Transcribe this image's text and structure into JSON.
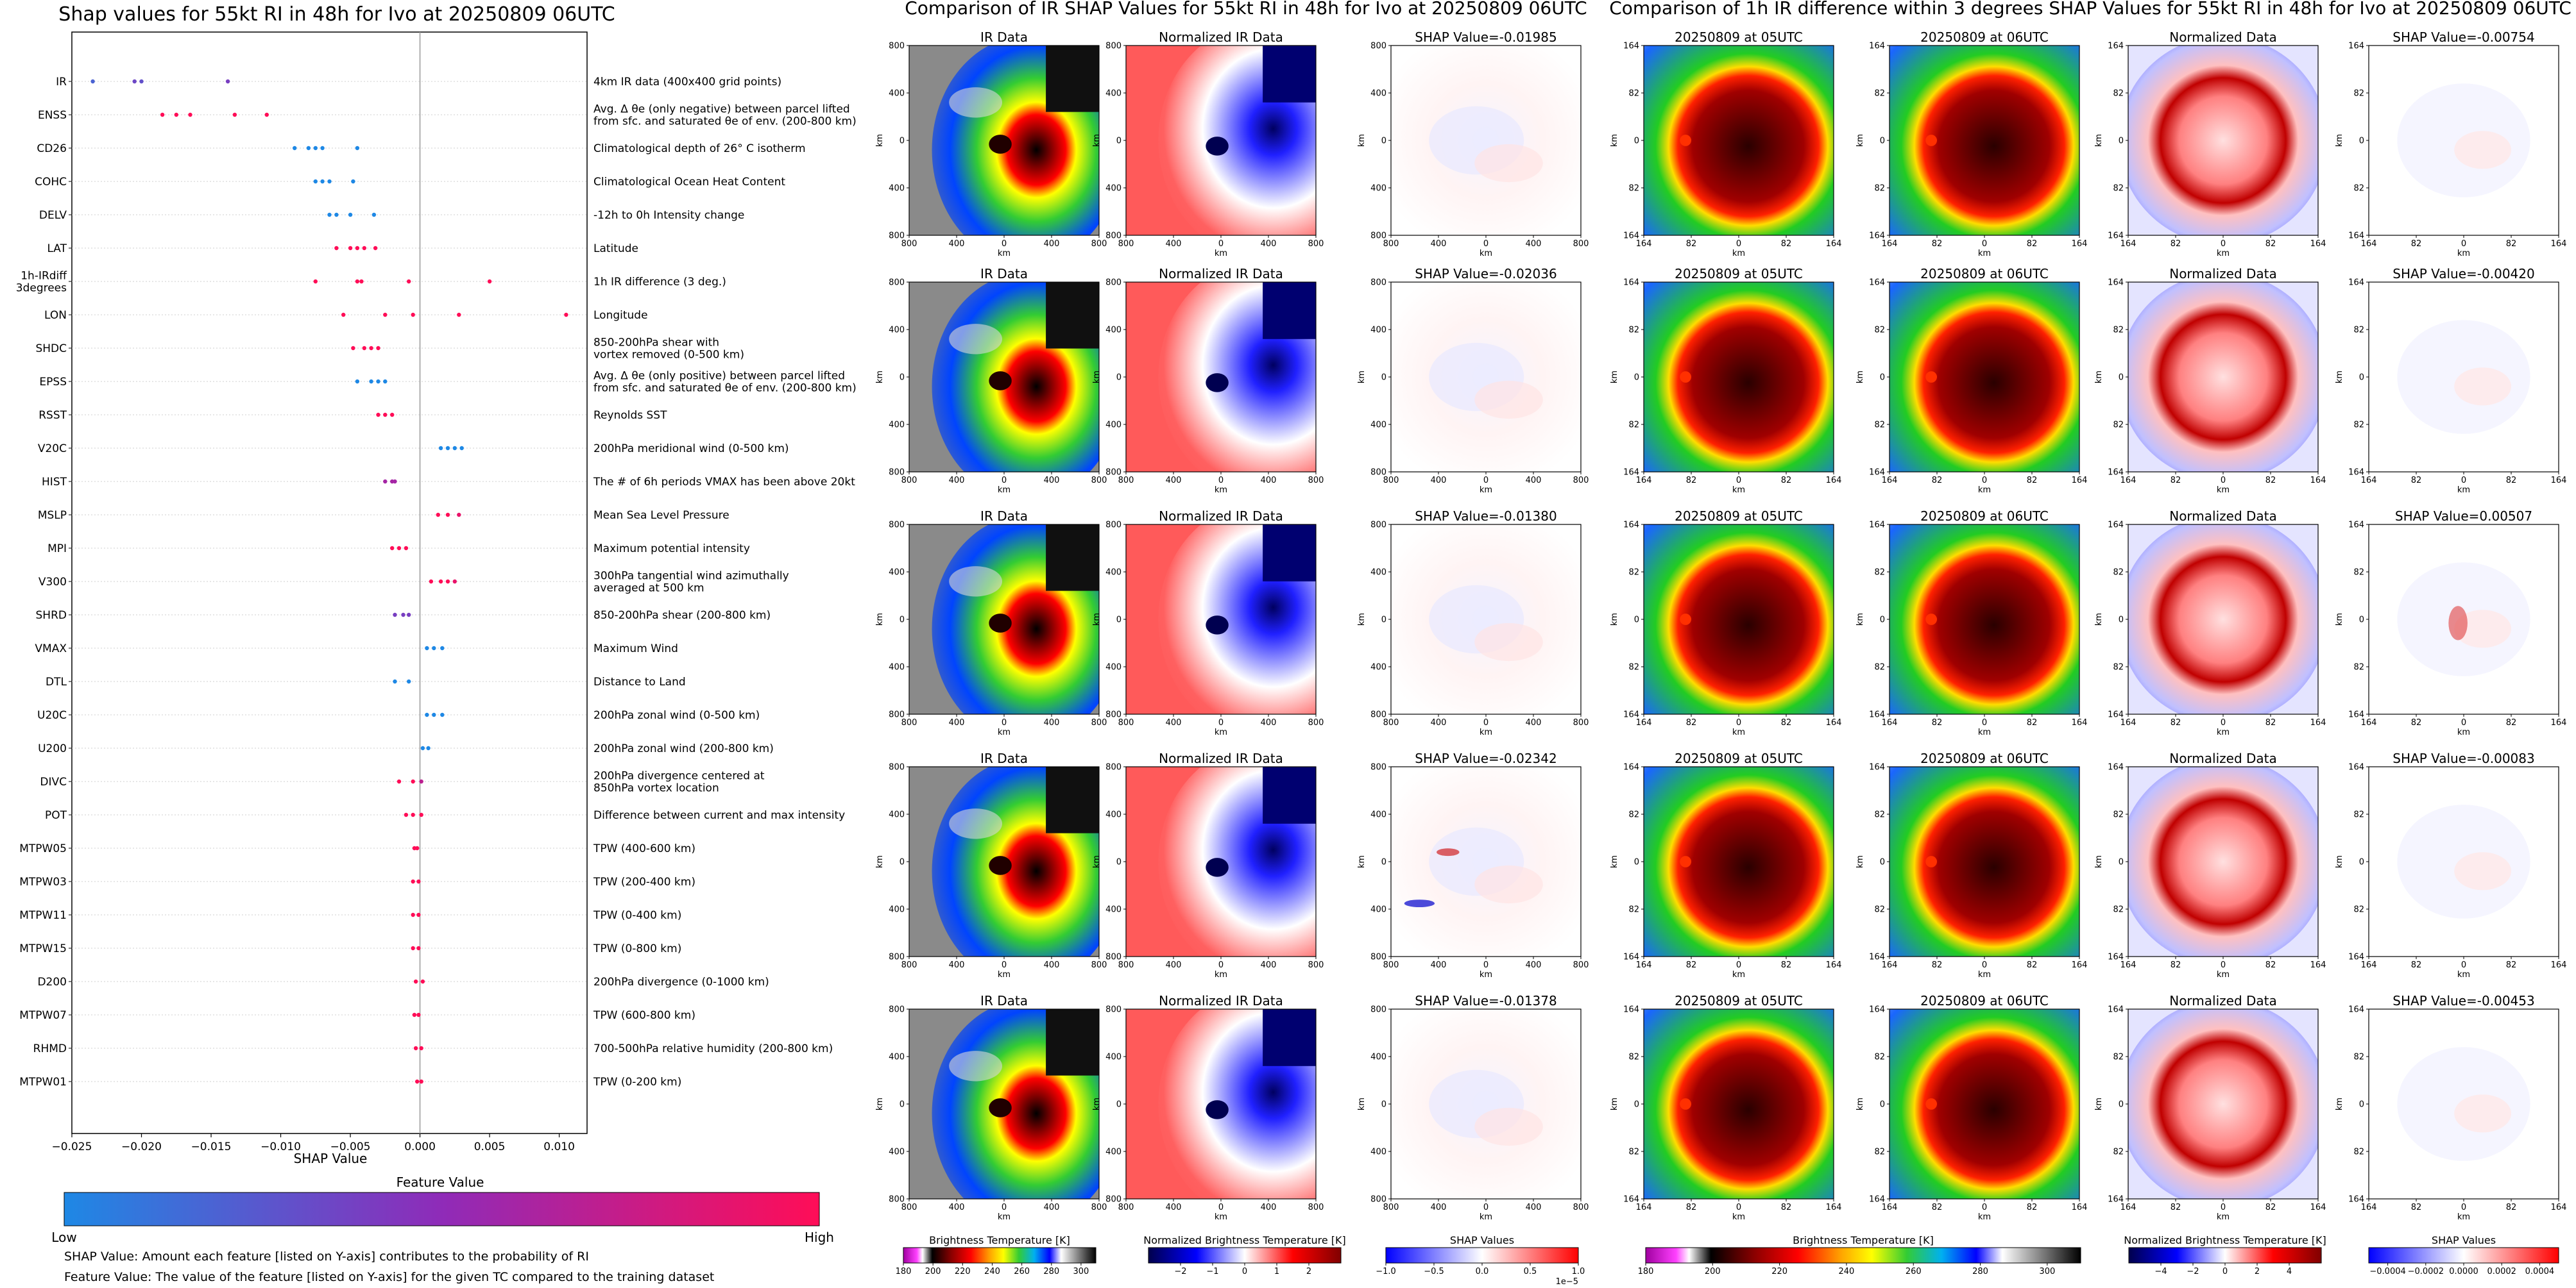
{
  "shap_summary": {
    "title": "Shap values for 55kt RI in 48h for Ivo at 20250809 06UTC",
    "xlabel": "SHAP Value",
    "colorbar_title": "Feature Value",
    "colorbar_low": "Low",
    "colorbar_high": "High",
    "colors": {
      "low": "#1E88E5",
      "mid": "#8F2BB8",
      "high": "#FF0D57"
    },
    "footnotes": [
      "SHAP Value: Amount each feature [listed on Y-axis] contributes to the probability of RI",
      "Feature Value: The value of the feature [listed on Y-axis] for the given TC compared to the training dataset"
    ]
  },
  "chart_data": [
    {
      "type": "scatter",
      "title": "Shap values for 55kt RI in 48h for Ivo at 20250809 06UTC",
      "xlabel": "SHAP Value",
      "xlim": [
        -0.025,
        0.012
      ],
      "xticks": [
        "−0.025",
        "−0.020",
        "−0.015",
        "−0.010",
        "−0.005",
        "0.000",
        "0.005",
        "0.010"
      ],
      "xtick_values": [
        -0.025,
        -0.02,
        -0.015,
        -0.01,
        -0.005,
        0.0,
        0.005,
        0.01
      ],
      "grid": "horizontal dotted",
      "features": [
        {
          "name": "IR",
          "description": "4km IR data (400x400 grid points)",
          "points": [
            [
              -0.0235,
              0.2
            ],
            [
              -0.0205,
              0.35
            ],
            [
              -0.02,
              0.3
            ],
            [
              -0.0138,
              0.4
            ]
          ]
        },
        {
          "name": "ENSS",
          "description": "Avg. Δ θe (only negative) between parcel lifted\nfrom sfc. and saturated θe of env. (200-800 km)",
          "points": [
            [
              -0.0185,
              1.0
            ],
            [
              -0.0175,
              1.0
            ],
            [
              -0.0165,
              1.0
            ],
            [
              -0.0133,
              1.0
            ],
            [
              -0.011,
              1.0
            ]
          ]
        },
        {
          "name": "CD26",
          "description": "Climatological depth of 26° C isotherm",
          "points": [
            [
              -0.009,
              0.0
            ],
            [
              -0.008,
              0.0
            ],
            [
              -0.0075,
              0.0
            ],
            [
              -0.007,
              0.0
            ],
            [
              -0.0045,
              0.0
            ]
          ]
        },
        {
          "name": "COHC",
          "description": "Climatological Ocean Heat Content",
          "points": [
            [
              -0.0075,
              0.0
            ],
            [
              -0.007,
              0.0
            ],
            [
              -0.0065,
              0.0
            ],
            [
              -0.0048,
              0.0
            ]
          ]
        },
        {
          "name": "DELV",
          "description": "-12h to 0h Intensity change",
          "points": [
            [
              -0.0065,
              0.0
            ],
            [
              -0.006,
              0.0
            ],
            [
              -0.005,
              0.0
            ],
            [
              -0.0033,
              0.0
            ]
          ]
        },
        {
          "name": "LAT",
          "description": "Latitude",
          "points": [
            [
              -0.006,
              1.0
            ],
            [
              -0.005,
              1.0
            ],
            [
              -0.0045,
              1.0
            ],
            [
              -0.004,
              1.0
            ],
            [
              -0.0032,
              1.0
            ]
          ]
        },
        {
          "name": "1h-IRdiff\n3degrees",
          "description": "1h IR difference (3 deg.)",
          "points": [
            [
              -0.0075,
              1.0
            ],
            [
              -0.0045,
              1.0
            ],
            [
              -0.0042,
              1.0
            ],
            [
              -0.0008,
              1.0
            ],
            [
              0.005,
              1.0
            ]
          ]
        },
        {
          "name": "LON",
          "description": "Longitude",
          "points": [
            [
              -0.0055,
              1.0
            ],
            [
              -0.0025,
              1.0
            ],
            [
              -0.0005,
              1.0
            ],
            [
              0.0028,
              1.0
            ],
            [
              0.0105,
              1.0
            ]
          ]
        },
        {
          "name": "SHDC",
          "description": "850-200hPa shear with\nvortex removed (0-500 km)",
          "points": [
            [
              -0.0048,
              1.0
            ],
            [
              -0.004,
              1.0
            ],
            [
              -0.0035,
              1.0
            ],
            [
              -0.003,
              1.0
            ]
          ]
        },
        {
          "name": "EPSS",
          "description": "Avg. Δ θe (only positive) between parcel lifted\nfrom sfc. and saturated θe of env. (200-800 km)",
          "points": [
            [
              -0.0045,
              0.0
            ],
            [
              -0.0035,
              0.0
            ],
            [
              -0.003,
              0.0
            ],
            [
              -0.0025,
              0.0
            ]
          ]
        },
        {
          "name": "RSST",
          "description": "Reynolds SST",
          "points": [
            [
              -0.003,
              1.0
            ],
            [
              -0.0025,
              1.0
            ],
            [
              -0.002,
              1.0
            ]
          ]
        },
        {
          "name": "V20C",
          "description": "200hPa meridional wind (0-500 km)",
          "points": [
            [
              0.0015,
              0.0
            ],
            [
              0.002,
              0.0
            ],
            [
              0.0025,
              0.0
            ],
            [
              0.003,
              0.0
            ]
          ]
        },
        {
          "name": "HIST",
          "description": "The # of 6h periods VMAX has been above 20kt",
          "points": [
            [
              -0.0025,
              0.6
            ],
            [
              -0.002,
              0.6
            ],
            [
              -0.0018,
              0.6
            ]
          ]
        },
        {
          "name": "MSLP",
          "description": "Mean Sea Level Pressure",
          "points": [
            [
              0.0013,
              1.0
            ],
            [
              0.002,
              1.0
            ],
            [
              0.0028,
              0.9
            ]
          ]
        },
        {
          "name": "MPI",
          "description": "Maximum potential intensity",
          "points": [
            [
              -0.002,
              1.0
            ],
            [
              -0.0015,
              1.0
            ],
            [
              -0.001,
              1.0
            ]
          ]
        },
        {
          "name": "V300",
          "description": "300hPa tangential wind azimuthally\naveraged at 500 km",
          "points": [
            [
              0.0008,
              1.0
            ],
            [
              0.0015,
              1.0
            ],
            [
              0.002,
              1.0
            ],
            [
              0.0025,
              0.9
            ]
          ]
        },
        {
          "name": "SHRD",
          "description": "850-200hPa shear (200-800 km)",
          "points": [
            [
              -0.0018,
              0.4
            ],
            [
              -0.0012,
              0.4
            ],
            [
              -0.0008,
              0.4
            ]
          ]
        },
        {
          "name": "VMAX",
          "description": "Maximum Wind",
          "points": [
            [
              0.0005,
              0.0
            ],
            [
              0.001,
              0.0
            ],
            [
              0.0016,
              0.0
            ]
          ]
        },
        {
          "name": "DTL",
          "description": "Distance to Land",
          "points": [
            [
              -0.0018,
              0.0
            ],
            [
              -0.0008,
              0.0
            ]
          ]
        },
        {
          "name": "U20C",
          "description": "200hPa zonal wind (0-500 km)",
          "points": [
            [
              0.0005,
              0.0
            ],
            [
              0.001,
              0.0
            ],
            [
              0.0016,
              0.0
            ]
          ]
        },
        {
          "name": "U200",
          "description": "200hPa zonal wind (200-800 km)",
          "points": [
            [
              0.0002,
              0.0
            ],
            [
              0.0006,
              0.0
            ]
          ]
        },
        {
          "name": "DIVC",
          "description": "200hPa divergence centered at\n850hPa vortex location",
          "points": [
            [
              -0.0015,
              1.0
            ],
            [
              -0.0005,
              1.0
            ],
            [
              0.0001,
              0.7
            ]
          ]
        },
        {
          "name": "POT",
          "description": "Difference between current and max intensity",
          "points": [
            [
              -0.001,
              1.0
            ],
            [
              -0.0005,
              1.0
            ],
            [
              0.0001,
              1.0
            ]
          ]
        },
        {
          "name": "MTPW05",
          "description": "TPW (400-600 km)",
          "points": [
            [
              -0.0004,
              1.0
            ],
            [
              -0.0002,
              1.0
            ]
          ]
        },
        {
          "name": "MTPW03",
          "description": "TPW (200-400 km)",
          "points": [
            [
              -0.0005,
              1.0
            ],
            [
              -0.0001,
              1.0
            ]
          ]
        },
        {
          "name": "MTPW11",
          "description": "TPW (0-400 km)",
          "points": [
            [
              -0.0005,
              1.0
            ],
            [
              -0.0001,
              1.0
            ]
          ]
        },
        {
          "name": "MTPW15",
          "description": "TPW (0-800 km)",
          "points": [
            [
              -0.0005,
              1.0
            ],
            [
              -0.0001,
              1.0
            ]
          ]
        },
        {
          "name": "D200",
          "description": "200hPa divergence (0-1000 km)",
          "points": [
            [
              -0.0003,
              1.0
            ],
            [
              0.0002,
              1.0
            ]
          ]
        },
        {
          "name": "MTPW07",
          "description": "TPW (600-800 km)",
          "points": [
            [
              -0.0004,
              1.0
            ],
            [
              -0.0001,
              1.0
            ]
          ]
        },
        {
          "name": "RHMD",
          "description": "700-500hPa relative humidity (200-800 km)",
          "points": [
            [
              -0.0003,
              1.0
            ],
            [
              0.0001,
              1.0
            ]
          ]
        },
        {
          "name": "MTPW01",
          "description": "TPW (0-200 km)",
          "points": [
            [
              -0.0002,
              1.0
            ],
            [
              0.0001,
              1.0
            ]
          ]
        }
      ]
    },
    {
      "type": "heatmap",
      "title": "Comparison of IR SHAP Values for 55kt RI in 48h for Ivo at 20250809 06UTC",
      "columns": [
        "IR Data",
        "Normalized IR Data",
        "SHAP Value"
      ],
      "rows": 5,
      "shap_values": [
        "-0.01985",
        "-0.02036",
        "-0.01380",
        "-0.02342",
        "-0.01378"
      ],
      "axis_label": "km",
      "ticks_x": [
        "800",
        "400",
        "0",
        "400",
        "800"
      ],
      "ticks_y": [
        "800",
        "400",
        "0",
        "400",
        "800"
      ],
      "colorbars": [
        {
          "label": "Brightness Temperature [K]",
          "ticks": [
            "180",
            "200",
            "220",
            "240",
            "260",
            "280",
            "300"
          ],
          "range": [
            180,
            310
          ]
        },
        {
          "label": "Normalized Brightness Temperature [K]",
          "ticks": [
            "−2",
            "−1",
            "0",
            "1",
            "2"
          ],
          "range": [
            -3,
            3
          ]
        },
        {
          "label": "SHAP Values",
          "ticks": [
            "−1.0",
            "−0.5",
            "0.0",
            "0.5",
            "1.0"
          ],
          "range": [
            -1,
            1
          ],
          "multiplier": "1e−5"
        }
      ]
    },
    {
      "type": "heatmap",
      "title": "Comparison of 1h IR difference within 3 degrees SHAP Values for 55kt RI in 48h for Ivo at 20250809 06UTC",
      "columns": [
        "20250809 at 05UTC",
        "20250809 at 06UTC",
        "Normalized Data",
        "SHAP Value"
      ],
      "rows": 5,
      "shap_values": [
        "-0.00754",
        "-0.00420",
        "0.00507",
        "-0.00083",
        "-0.00453"
      ],
      "axis_label": "km",
      "ticks_x": [
        "164",
        "82",
        "0",
        "82",
        "164"
      ],
      "ticks_y": [
        "164",
        "82",
        "0",
        "82",
        "164"
      ],
      "colorbars": [
        {
          "label": "Brightness Temperature [K]",
          "ticks": [
            "180",
            "200",
            "220",
            "240",
            "260",
            "280",
            "300"
          ],
          "range": [
            180,
            310
          ]
        },
        {
          "label": "Normalized Brightness Temperature [K]",
          "ticks": [
            "−4",
            "−2",
            "0",
            "2",
            "4"
          ],
          "range": [
            -6,
            6
          ]
        },
        {
          "label": "SHAP Values",
          "ticks": [
            "−0.0004",
            "−0.0002",
            "0.0000",
            "0.0002",
            "0.0004"
          ],
          "range": [
            -0.0005,
            0.0005
          ]
        }
      ]
    }
  ]
}
